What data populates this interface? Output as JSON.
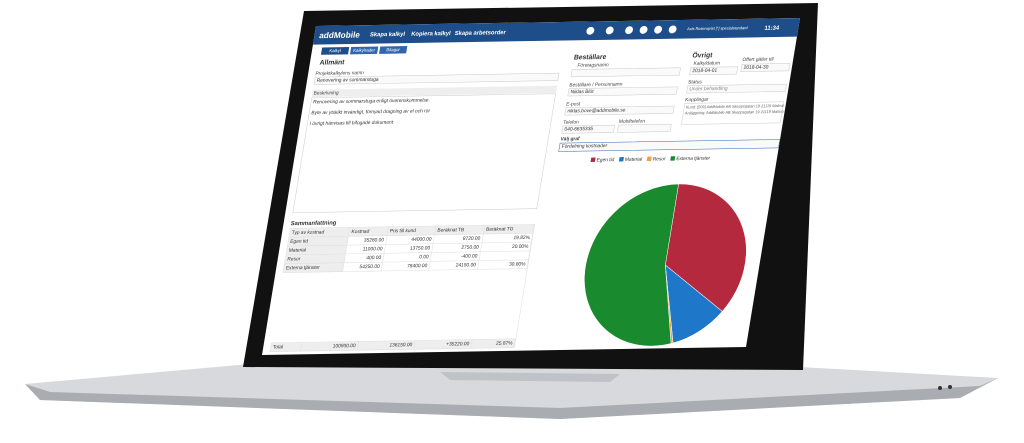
{
  "header": {
    "logo": "addMobile",
    "actions": [
      "Skapa kalkyl",
      "Kopiera kalkyl",
      "Skapa arbetsorder"
    ],
    "user": "Axis Rosenqvist [*] specialstandard",
    "time": "11:34"
  },
  "tabs": [
    "Kalkyl",
    "Kalkylrader",
    "Bilagor"
  ],
  "general": {
    "title": "Allmänt",
    "name_label": "Projektkalkylens namn",
    "name": "Renovering av sommarstuga",
    "description_label": "Beskrivning",
    "description": [
      "Renovering av sommarstuga enligt överenskommelse.",
      "Byte av ytskikt invändigt, förnyad dragning av el och rör",
      "I övrigt hänvisas till bifogade dokument"
    ]
  },
  "customer": {
    "title": "Beställare",
    "company_label": "Företagsnamn",
    "person_label": "Beställare / Personnamn",
    "person": "Niklas Blöt",
    "email_label": "E-post",
    "email": "niklas.bove@addmobile.se",
    "phone_label": "Telefon",
    "phone": "040-6635335",
    "mobile_label": "Mobiltelefon"
  },
  "other": {
    "title": "Övrigt",
    "date_label": "Kalkyldatum",
    "date": "2018-04-01",
    "valid_label": "Offert gäller till",
    "valid": "2018-04-30",
    "status_label": "Status",
    "status": "Under behandling",
    "links_label": "Kopplingar",
    "links": [
      "Kund: [509] AddMobile AB Skeppsgatan 19 21119 Malmö",
      "Anläggning: AddMobile AB Skeppsgatan 19 21119 Malmö"
    ]
  },
  "graph": {
    "label": "Välj graf",
    "selected": "Fördelning kostnader",
    "chart": {
      "type": "pie",
      "categories": [
        "Egen tid",
        "Material",
        "Resor",
        "Externa tjänster"
      ],
      "values": [
        35280,
        11000,
        400,
        54250
      ],
      "colors": [
        "#b5293f",
        "#1f77c9",
        "#f0a04b",
        "#1a8a2e"
      ]
    }
  },
  "summary": {
    "title": "Sammanfattning",
    "header": [
      "Typ av kostnad",
      "Kostnad",
      "Pris till kund",
      "Beräknat TB",
      "Beräknat TG"
    ],
    "rows": [
      [
        "Egen tid",
        "35280.00",
        "44000.00",
        "8720.00",
        "19.82%"
      ],
      [
        "Material",
        "11000.00",
        "13750.00",
        "2750.00",
        "20.00%"
      ],
      [
        "Resor",
        "400.00",
        "0.00",
        "-400.00"
      ],
      [
        "Externa tjänster",
        "54250.00",
        "78400.00",
        "24150.00",
        "30.80%"
      ]
    ],
    "total": [
      "Total",
      "100930.00",
      "136150.00",
      "+35220.00",
      "25.87%"
    ]
  }
}
